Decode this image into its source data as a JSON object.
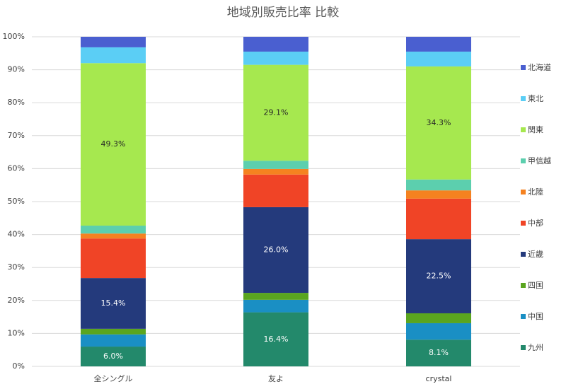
{
  "chart_data": {
    "type": "stacked_bar",
    "title": "地域別販売比率 比較",
    "categories": [
      "全シングル",
      "友よ",
      "crystal"
    ],
    "ylim": [
      0,
      100
    ],
    "yticks": [
      {
        "value": 0,
        "label": "0%"
      },
      {
        "value": 10,
        "label": "10%"
      },
      {
        "value": 20,
        "label": "20%"
      },
      {
        "value": 30,
        "label": "30%"
      },
      {
        "value": 40,
        "label": "40%"
      },
      {
        "value": 50,
        "label": "50%"
      },
      {
        "value": 60,
        "label": "60%"
      },
      {
        "value": 70,
        "label": "70%"
      },
      {
        "value": 80,
        "label": "80%"
      },
      {
        "value": 90,
        "label": "90%"
      },
      {
        "value": 100,
        "label": "100%"
      }
    ],
    "grid": true,
    "legend": "right",
    "series": [
      {
        "name": "九州",
        "color": "#23896b",
        "values": [
          6.0,
          16.4,
          8.1
        ],
        "value_labels": [
          "6.0%",
          "16.4%",
          "8.1%"
        ]
      },
      {
        "name": "中国",
        "color": "#1a8fc4",
        "values": [
          3.7,
          3.8,
          5.0
        ]
      },
      {
        "name": "四国",
        "color": "#5aa51f",
        "values": [
          1.7,
          2.1,
          3.0
        ]
      },
      {
        "name": "近畿",
        "color": "#243a7c",
        "values": [
          15.4,
          26.0,
          22.5
        ],
        "value_labels": [
          "15.4%",
          "26.0%",
          "22.5%"
        ]
      },
      {
        "name": "中部",
        "color": "#f04426",
        "values": [
          12.0,
          9.9,
          12.3
        ]
      },
      {
        "name": "北陸",
        "color": "#f58220",
        "values": [
          1.5,
          1.7,
          2.5
        ]
      },
      {
        "name": "甲信越",
        "color": "#5ccfae",
        "values": [
          2.4,
          2.5,
          3.3
        ]
      },
      {
        "name": "関東",
        "color": "#a6e84f",
        "values": [
          49.3,
          29.1,
          34.3
        ],
        "value_labels": [
          "49.3%",
          "29.1%",
          "34.3%"
        ]
      },
      {
        "name": "東北",
        "color": "#5bcef5",
        "values": [
          4.8,
          4.0,
          4.5
        ]
      },
      {
        "name": "北海道",
        "color": "#4a5fd0",
        "values": [
          3.2,
          4.5,
          4.5
        ]
      }
    ]
  }
}
